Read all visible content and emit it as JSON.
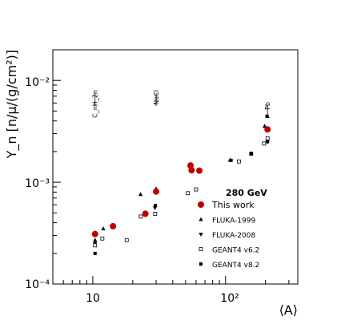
{
  "chart_data": {
    "type": "scatter",
    "title": "",
    "xlabel": "⟨A⟩",
    "ylabel": "Y_n [n/μ/(g/cm²)]",
    "xscale": "log",
    "yscale": "log",
    "xlim": [
      5,
      350
    ],
    "ylim": [
      0.0001,
      0.02
    ],
    "x_tick_labels": [
      "10",
      "10²"
    ],
    "y_tick_labels": [
      "10⁻⁴",
      "10⁻³",
      "10⁻²"
    ],
    "grid": false,
    "legend_title": "280 GeV",
    "legend_position": "lower-right",
    "material_labels": [
      {
        "text": "C_nH_2n",
        "x": 10.4
      },
      {
        "text": "NaCl",
        "x": 30
      },
      {
        "text": "Pb",
        "x": 207
      }
    ],
    "series": [
      {
        "name": "This work",
        "marker": "circle",
        "color": "#c00000",
        "points": [
          [
            10.4,
            0.00031
          ],
          [
            14.2,
            0.00037
          ],
          [
            24.9,
            0.00049
          ],
          [
            30.0,
            0.00081
          ],
          [
            54.5,
            0.00146
          ],
          [
            55.5,
            0.00131
          ],
          [
            63.5,
            0.0013
          ],
          [
            207.2,
            0.0033
          ]
        ]
      },
      {
        "name": "FLUKA-1999",
        "marker": "triangle-up",
        "color": "#000000",
        "points": [
          [
            10.4,
            0.00027
          ],
          [
            12.0,
            0.00035
          ],
          [
            22.9,
            0.00076
          ],
          [
            30.0,
            0.00086
          ],
          [
            54.5,
            0.0015
          ],
          [
            108.0,
            0.00165
          ],
          [
            197.0,
            0.00355
          ],
          [
            207.2,
            0.00445
          ]
        ]
      },
      {
        "name": "FLUKA-2008",
        "marker": "triangle-down",
        "color": "#000000",
        "points": [
          [
            10.4,
            0.00025
          ],
          [
            29.4,
            0.00056
          ],
          [
            54.0,
            0.00142
          ],
          [
            207.2,
            0.0025
          ]
        ]
      },
      {
        "name": "GEANT4 v6.2",
        "marker": "square-open",
        "color": "#000000",
        "points": [
          [
            10.4,
            0.00024
          ],
          [
            11.8,
            0.00028
          ],
          [
            18.0,
            0.00027
          ],
          [
            23.0,
            0.00046
          ],
          [
            29.5,
            0.00049
          ],
          [
            52.0,
            0.00078
          ],
          [
            60.0,
            0.00085
          ],
          [
            126.0,
            0.0016
          ],
          [
            156.0,
            0.0019
          ],
          [
            195.0,
            0.0024
          ],
          [
            207.2,
            0.0027
          ]
        ]
      },
      {
        "name": "GEANT4 v8.2",
        "marker": "square-filled",
        "color": "#000000",
        "points": [
          [
            10.4,
            0.0002
          ],
          [
            29.6,
            0.00059
          ],
          [
            110.0,
            0.00164
          ],
          [
            156.0,
            0.00192
          ],
          [
            207.2,
            0.0025
          ],
          [
            205.0,
            0.00445
          ]
        ]
      }
    ]
  }
}
